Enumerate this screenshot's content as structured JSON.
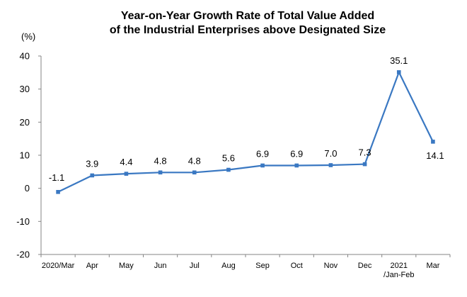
{
  "chart_data": {
    "type": "line",
    "title_lines": [
      "Year-on-Year Growth Rate of Total Value Added",
      "of the Industrial Enterprises above Designated Size"
    ],
    "unit_label": "(%)",
    "categories": [
      [
        "2020/Mar"
      ],
      [
        "Apr"
      ],
      [
        "May"
      ],
      [
        "Jun"
      ],
      [
        "Jul"
      ],
      [
        "Aug"
      ],
      [
        "Sep"
      ],
      [
        "Oct"
      ],
      [
        "Nov"
      ],
      [
        "Dec"
      ],
      [
        "2021",
        "/Jan-Feb"
      ],
      [
        "Mar"
      ]
    ],
    "series": [
      {
        "values": [
          -1.1,
          3.9,
          4.4,
          4.8,
          4.8,
          5.6,
          6.9,
          6.9,
          7.0,
          7.3,
          35.1,
          14.1
        ],
        "data_labels": [
          "-1.1",
          "3.9",
          "4.4",
          "4.8",
          "4.8",
          "5.6",
          "6.9",
          "6.9",
          "7.0",
          "7.3",
          "35.1",
          "14.1"
        ],
        "color": "#3a78c2"
      }
    ],
    "ylim": [
      -20,
      40
    ],
    "yticks": [
      -20,
      -10,
      0,
      10,
      20,
      30,
      40
    ],
    "ytick_labels": [
      "-20",
      "-10",
      "0",
      "10",
      "20",
      "30",
      "40"
    ],
    "grid": false,
    "legend": "none",
    "axis_color": "#868686",
    "text_color": "#000000"
  }
}
